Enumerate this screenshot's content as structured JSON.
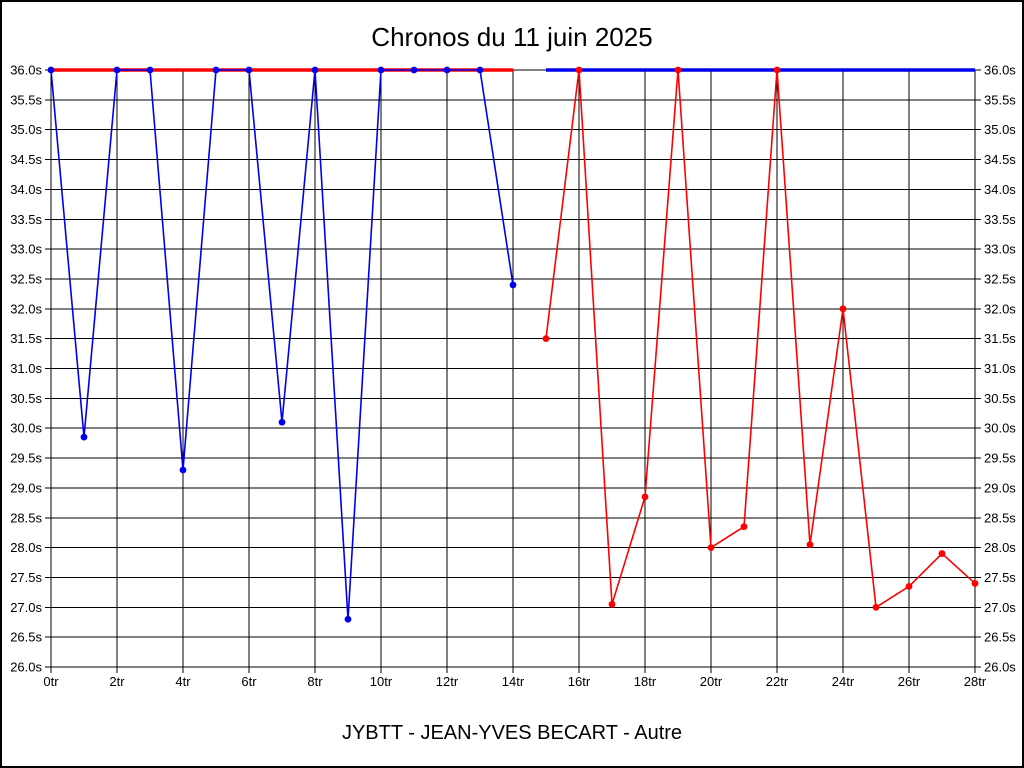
{
  "page": {
    "title": "Chronos du 11 juin 2025",
    "footer": "JYBTT - JEAN-YVES BECART - Autre"
  },
  "chart_data": {
    "type": "line",
    "title": "Chronos du 11 juin 2025",
    "footer": "JYBTT - JEAN-YVES BECART - Autre",
    "xlabel": "",
    "ylabel": "",
    "x_unit_suffix": "tr",
    "y_unit_suffix": "s",
    "xlim": [
      0,
      28
    ],
    "ylim": [
      26.0,
      36.0
    ],
    "x_tick_step": 2,
    "y_tick_step": 0.5,
    "grid": true,
    "legend": "none",
    "colors": {
      "blue_series": "#0000ee",
      "red_series": "#ff0000",
      "grid": "#000000",
      "frame": "#000000",
      "background": "#ffffff"
    },
    "x_ticks": [
      "0tr",
      "2tr",
      "4tr",
      "6tr",
      "8tr",
      "10tr",
      "12tr",
      "14tr",
      "16tr",
      "18tr",
      "20tr",
      "22tr",
      "24tr",
      "26tr",
      "28tr"
    ],
    "y_ticks": [
      "36.0s",
      "35.5s",
      "35.0s",
      "34.5s",
      "34.0s",
      "33.5s",
      "33.0s",
      "32.5s",
      "32.0s",
      "31.5s",
      "31.0s",
      "30.5s",
      "30.0s",
      "29.5s",
      "29.0s",
      "28.5s",
      "28.0s",
      "27.5s",
      "27.0s",
      "26.5s",
      "26.0s"
    ],
    "series": [
      {
        "name": "red-baseline-rounds-0-14",
        "color": "#ff0000",
        "line_width": 3.5,
        "markers": false,
        "points": [
          [
            0,
            36.0
          ],
          [
            14,
            36.0
          ]
        ]
      },
      {
        "name": "blue-times-rounds-0-14",
        "color": "#0000ee",
        "line_width": 1.6,
        "markers": true,
        "points": [
          [
            0,
            36.0
          ],
          [
            1,
            29.85
          ],
          [
            2,
            36.0
          ],
          [
            3,
            36.0
          ],
          [
            4,
            29.3
          ],
          [
            5,
            36.0
          ],
          [
            6,
            36.0
          ],
          [
            7,
            30.1
          ],
          [
            8,
            36.0
          ],
          [
            9,
            26.8
          ],
          [
            10,
            36.0
          ],
          [
            11,
            36.0
          ],
          [
            12,
            36.0
          ],
          [
            13,
            36.0
          ],
          [
            14,
            32.4
          ]
        ]
      },
      {
        "name": "blue-baseline-rounds-15-28",
        "color": "#0000ee",
        "line_width": 3.5,
        "markers": false,
        "points": [
          [
            15,
            36.0
          ],
          [
            28,
            36.0
          ]
        ]
      },
      {
        "name": "red-times-rounds-15-28",
        "color": "#ff0000",
        "line_width": 1.6,
        "markers": true,
        "points": [
          [
            15,
            31.5
          ],
          [
            16,
            36.0
          ],
          [
            17,
            27.05
          ],
          [
            18,
            28.85
          ],
          [
            19,
            36.0
          ],
          [
            20,
            28.0
          ],
          [
            21,
            28.35
          ],
          [
            22,
            36.0
          ],
          [
            23,
            28.05
          ],
          [
            24,
            32.0
          ],
          [
            25,
            27.0
          ],
          [
            26,
            27.35
          ],
          [
            27,
            27.9
          ],
          [
            28,
            27.4
          ]
        ]
      }
    ]
  }
}
